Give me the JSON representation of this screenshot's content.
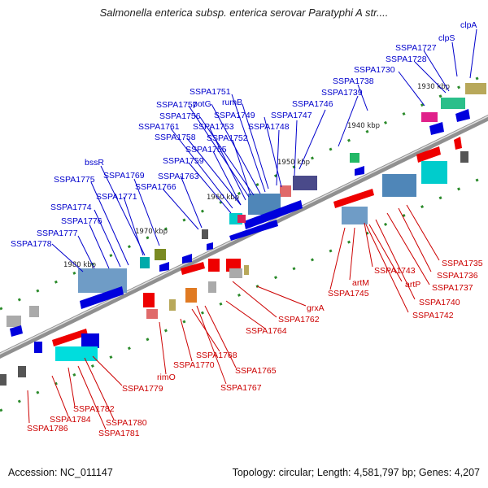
{
  "title": "Salmonella enterica subsp. enterica serovar Paratyphi A str....",
  "footer": {
    "accession": "Accession: NC_011147",
    "info": "Topology: circular; Length: 4,581,797 bp; Genes: 4,207"
  },
  "colors": {
    "upper": "#0000cc",
    "lower": "#cc0000",
    "backbone": "#8a8a8a"
  },
  "kbp_ticks": [
    "1930 kbp",
    "1940 kbp",
    "1950 kbp",
    "1960 kbp",
    "1970 kbp",
    "1980 kbp"
  ],
  "upper_labels": [
    "clpA",
    "clpS",
    "SSPA1727",
    "SSPA1728",
    "SSPA1730",
    "SSPA1738",
    "SSPA1739",
    "SSPA1746",
    "SSPA1747",
    "SSPA1748",
    "SSPA1749",
    "rumB",
    "SSPA1751",
    "potG",
    "SSPA1757",
    "SSPA1756",
    "SSPA1753",
    "SSPA1752",
    "SSPA1761",
    "SSPA1758",
    "SSPA1755",
    "SSPA1759",
    "SSPA1763",
    "SSPA1766",
    "bssR",
    "SSPA1769",
    "SSPA1775",
    "SSPA1771",
    "SSPA1774",
    "SSPA1776",
    "SSPA1777",
    "SSPA1778"
  ],
  "lower_labels": [
    "SSPA1735",
    "SSPA1736",
    "SSPA1737",
    "SSPA1740",
    "SSPA1742",
    "SSPA1743",
    "artP",
    "artM",
    "SSPA1745",
    "grxA",
    "SSPA1762",
    "SSPA1764",
    "SSPA1765",
    "SSPA1767",
    "SSPA1768",
    "SSPA1770",
    "rimO",
    "SSPA1779",
    "SSPA1780",
    "SSPA1781",
    "SSPA1782",
    "SSPA1784",
    "SSPA1786"
  ]
}
